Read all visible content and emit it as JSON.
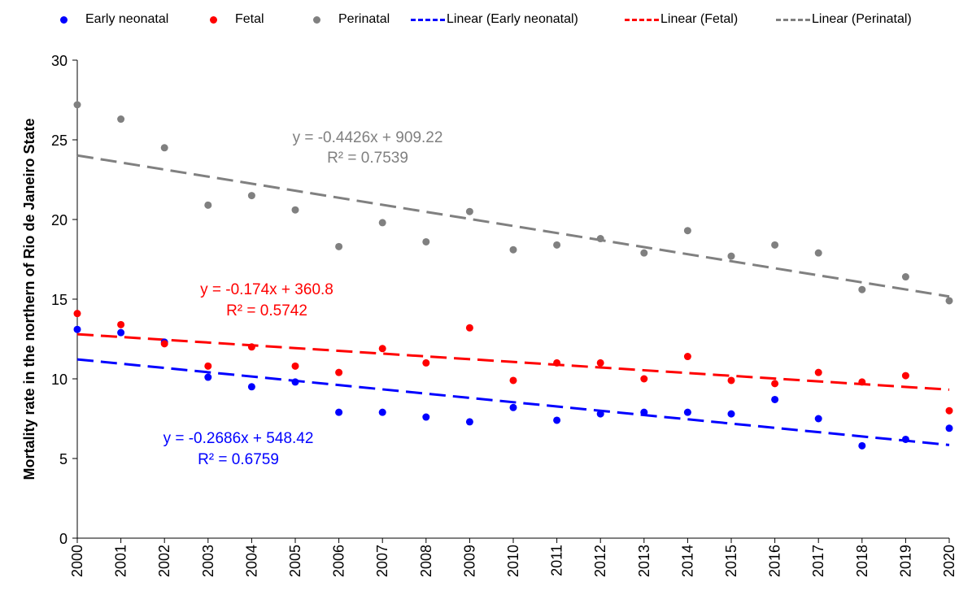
{
  "chart_data": {
    "type": "scatter",
    "ylabel": "Mortality rate in the northern of Rio de Janeiro State",
    "xlabel": "",
    "ylim": [
      0,
      30
    ],
    "yticks": [
      0,
      5,
      10,
      15,
      20,
      25,
      30
    ],
    "x": [
      "2000",
      "2001",
      "2002",
      "2003",
      "2004",
      "2005",
      "2006",
      "2007",
      "2008",
      "2009",
      "2010",
      "2011",
      "2012",
      "2013",
      "2014",
      "2015",
      "2016",
      "2017",
      "2018",
      "2019",
      "2020"
    ],
    "series": [
      {
        "name": "Early neonatal",
        "color": "#0000ff",
        "values": [
          13.1,
          12.9,
          12.3,
          10.1,
          9.5,
          9.8,
          7.9,
          7.9,
          7.6,
          7.3,
          8.2,
          7.4,
          7.8,
          7.9,
          7.9,
          7.8,
          8.7,
          7.5,
          5.8,
          6.2,
          6.9
        ]
      },
      {
        "name": "Fetal",
        "color": "#ff0000",
        "values": [
          14.1,
          13.4,
          12.2,
          10.8,
          12.0,
          10.8,
          10.4,
          11.9,
          11.0,
          13.2,
          9.9,
          11.0,
          11.0,
          10.0,
          11.4,
          9.9,
          9.7,
          10.4,
          9.8,
          10.2,
          8.0
        ]
      },
      {
        "name": "Perinatal",
        "color": "#808080",
        "values": [
          27.2,
          26.3,
          24.5,
          20.9,
          21.5,
          20.6,
          18.3,
          19.8,
          18.6,
          20.5,
          18.1,
          18.4,
          18.8,
          17.9,
          19.3,
          17.7,
          18.4,
          17.9,
          15.6,
          16.4,
          14.9
        ]
      }
    ],
    "trendlines": [
      {
        "name": "Linear (Early neonatal)",
        "color": "#0000ff",
        "slope": -0.2686,
        "intercept": 548.42,
        "equation": "y = -0.2686x + 548.42",
        "r2": "R² = 0.6759"
      },
      {
        "name": "Linear (Fetal)",
        "color": "#ff0000",
        "slope": -0.174,
        "intercept": 360.8,
        "equation": "y = -0.174x + 360.8",
        "r2": "R² = 0.5742"
      },
      {
        "name": "Linear (Perinatal)",
        "color": "#808080",
        "slope": -0.4426,
        "intercept": 909.22,
        "equation": "y = -0.4426x + 909.22",
        "r2": "R² = 0.7539"
      }
    ],
    "legend_position": "top",
    "grid": false
  }
}
